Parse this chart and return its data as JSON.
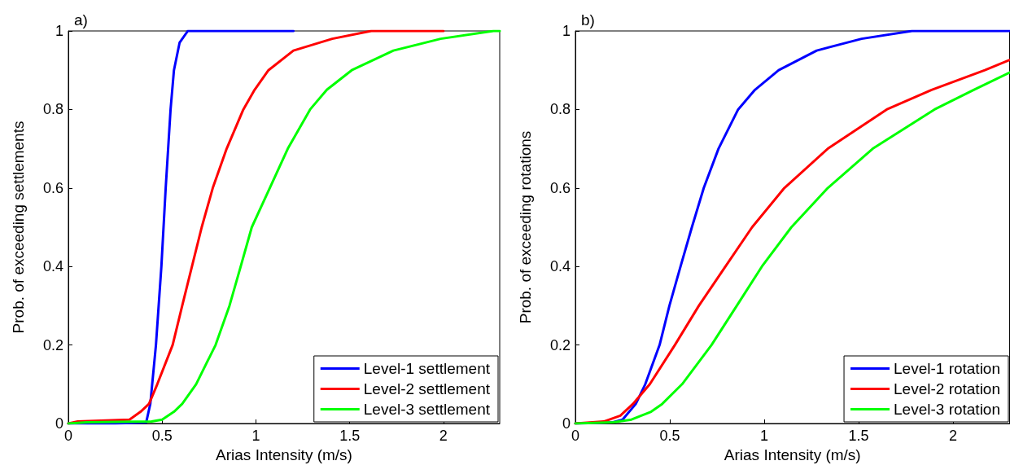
{
  "chart_data": [
    {
      "type": "line",
      "title": "a)",
      "xlabel": "Arias Intensity (m/s)",
      "ylabel": "Prob. of exceeding settlements",
      "xlim": [
        0,
        2.3
      ],
      "ylim": [
        0,
        1
      ],
      "xticks": [
        0,
        0.5,
        1,
        1.5,
        2
      ],
      "yticks": [
        0,
        0.2,
        0.4,
        0.6,
        0.8,
        1
      ],
      "grid": false,
      "legend": "bottom right",
      "marker": "none",
      "line_style": "solid",
      "series": [
        {
          "name": "Level-1 settlement",
          "color": "#0000ff",
          "x": [
            0,
            0.25,
            0.415,
            0.437,
            0.467,
            0.496,
            0.519,
            0.545,
            0.563,
            0.593,
            0.637,
            1.2
          ],
          "values": [
            0,
            0,
            0.003,
            0.05,
            0.2,
            0.4,
            0.6,
            0.8,
            0.9,
            0.97,
            1,
            1
          ]
        },
        {
          "name": "Level-2 settlement",
          "color": "#ff0000",
          "x": [
            0,
            0.05,
            0.326,
            0.385,
            0.43,
            0.474,
            0.556,
            0.607,
            0.659,
            0.711,
            0.77,
            0.844,
            0.933,
            0.993,
            1.067,
            1.2,
            1.407,
            1.615,
            2.0
          ],
          "values": [
            0,
            0.005,
            0.01,
            0.03,
            0.05,
            0.1,
            0.2,
            0.3,
            0.4,
            0.5,
            0.6,
            0.7,
            0.8,
            0.85,
            0.9,
            0.95,
            0.98,
            1,
            1
          ]
        },
        {
          "name": "Level-3 settlement",
          "color": "#00ff00",
          "x": [
            0,
            0.1,
            0.444,
            0.5,
            0.563,
            0.607,
            0.681,
            0.785,
            0.859,
            0.919,
            0.978,
            1.074,
            1.17,
            1.289,
            1.378,
            1.511,
            1.733,
            1.985,
            2.267,
            2.3
          ],
          "values": [
            0,
            0.003,
            0.005,
            0.01,
            0.03,
            0.05,
            0.1,
            0.2,
            0.3,
            0.4,
            0.5,
            0.6,
            0.7,
            0.8,
            0.85,
            0.9,
            0.95,
            0.98,
            1,
            1
          ]
        }
      ]
    },
    {
      "type": "line",
      "title": "b)",
      "xlabel": "Arias Intensity (m/s)",
      "ylabel": "Prob. of exceeding rotations",
      "xlim": [
        0,
        2.3
      ],
      "ylim": [
        0,
        1
      ],
      "xticks": [
        0,
        0.5,
        1,
        1.5,
        2
      ],
      "yticks": [
        0,
        0.2,
        0.4,
        0.6,
        0.8,
        1
      ],
      "grid": false,
      "legend": "bottom right",
      "marker": "none",
      "line_style": "solid",
      "series": [
        {
          "name": "Level-1 rotation",
          "color": "#0000ff",
          "x": [
            0,
            0.2,
            0.25,
            0.32,
            0.37,
            0.446,
            0.498,
            0.557,
            0.617,
            0.68,
            0.758,
            0.862,
            0.951,
            1.077,
            1.278,
            1.516,
            1.783,
            2.3
          ],
          "values": [
            0,
            0.003,
            0.01,
            0.05,
            0.1,
            0.2,
            0.3,
            0.4,
            0.5,
            0.6,
            0.7,
            0.8,
            0.85,
            0.9,
            0.95,
            0.98,
            1,
            1
          ]
        },
        {
          "name": "Level-2 rotation",
          "color": "#ff0000",
          "x": [
            0,
            0.15,
            0.238,
            0.305,
            0.394,
            0.527,
            0.654,
            0.795,
            0.936,
            1.107,
            1.337,
            1.649,
            1.887,
            2.169,
            2.3
          ],
          "values": [
            0,
            0.005,
            0.02,
            0.05,
            0.1,
            0.2,
            0.3,
            0.4,
            0.5,
            0.6,
            0.7,
            0.8,
            0.85,
            0.9,
            0.926
          ]
        },
        {
          "name": "Level-3 rotation",
          "color": "#00ff00",
          "x": [
            0,
            0.2,
            0.297,
            0.401,
            0.46,
            0.565,
            0.721,
            0.855,
            0.988,
            1.144,
            1.337,
            1.575,
            1.902,
            2.11,
            2.3
          ],
          "values": [
            0,
            0.003,
            0.01,
            0.03,
            0.05,
            0.1,
            0.2,
            0.3,
            0.4,
            0.5,
            0.6,
            0.7,
            0.8,
            0.85,
            0.894
          ]
        }
      ]
    }
  ]
}
